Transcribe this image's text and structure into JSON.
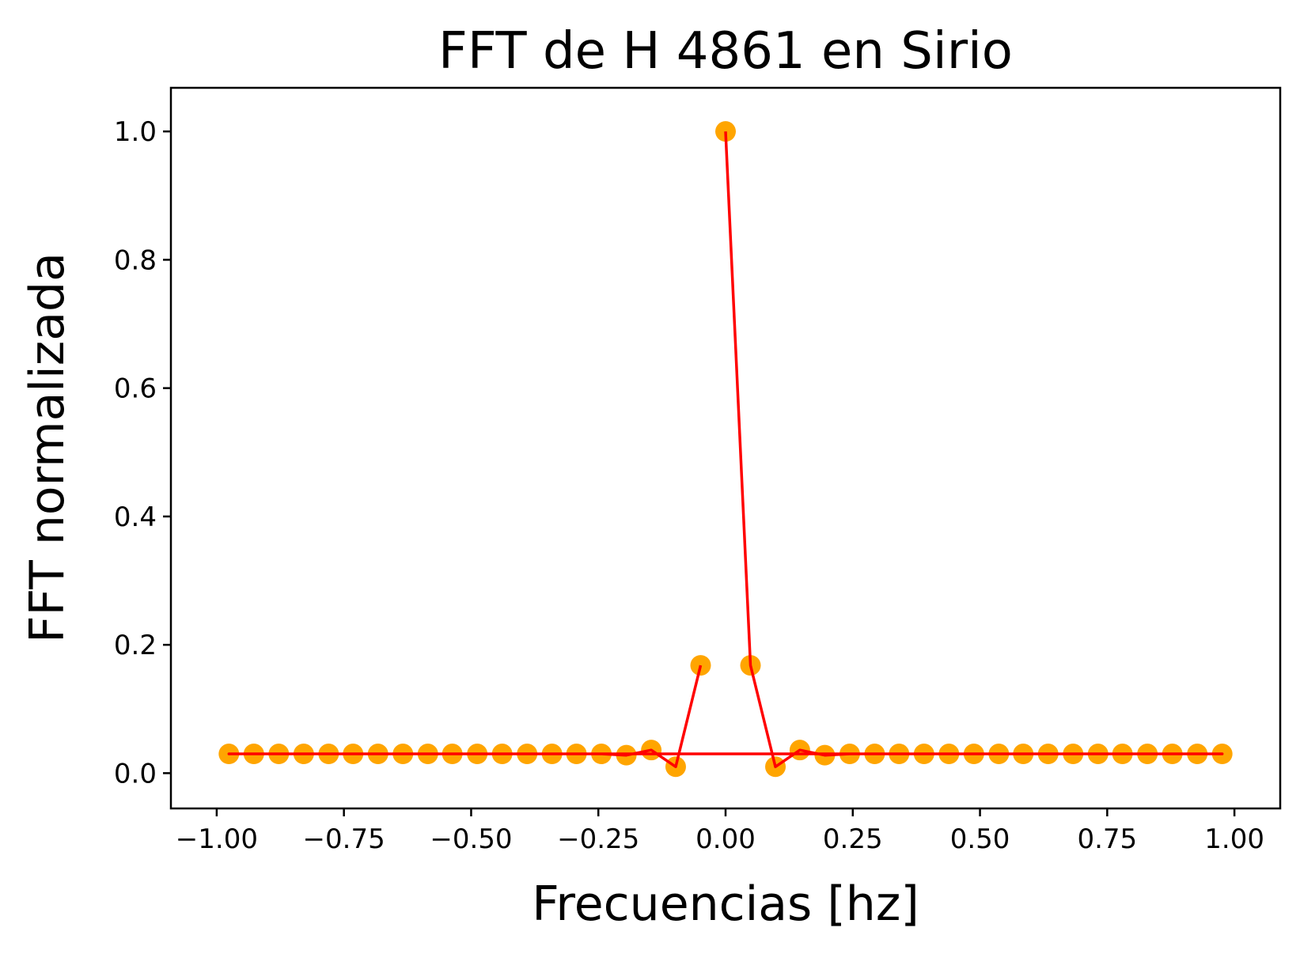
{
  "chart_data": {
    "type": "scatter",
    "title": "FFT de H 4861 en Sirio",
    "xlabel": "Frecuencias [hz]",
    "ylabel": "FFT normalizada",
    "xlim": [
      -1.09,
      1.09
    ],
    "ylim": [
      -0.055,
      1.068
    ],
    "xticks": [
      -1.0,
      -0.75,
      -0.5,
      -0.25,
      0.0,
      0.25,
      0.5,
      0.75,
      1.0
    ],
    "xtick_labels": [
      "−1.00",
      "−0.75",
      "−0.50",
      "−0.25",
      "0.00",
      "0.25",
      "0.50",
      "0.75",
      "1.00"
    ],
    "yticks": [
      0.0,
      0.2,
      0.4,
      0.6,
      0.8,
      1.0
    ],
    "ytick_labels": [
      "0.0",
      "0.2",
      "0.4",
      "0.6",
      "0.8",
      "1.0"
    ],
    "grid": false,
    "series": [
      {
        "kind": "points",
        "color": "#FFA500",
        "points": [
          [
            -0.976,
            0.03
          ],
          [
            -0.927,
            0.03
          ],
          [
            -0.878,
            0.03
          ],
          [
            -0.829,
            0.03
          ],
          [
            -0.78,
            0.03
          ],
          [
            -0.732,
            0.03
          ],
          [
            -0.683,
            0.03
          ],
          [
            -0.634,
            0.03
          ],
          [
            -0.585,
            0.03
          ],
          [
            -0.537,
            0.03
          ],
          [
            -0.488,
            0.03
          ],
          [
            -0.439,
            0.03
          ],
          [
            -0.39,
            0.03
          ],
          [
            -0.341,
            0.03
          ],
          [
            -0.293,
            0.03
          ],
          [
            -0.244,
            0.03
          ],
          [
            -0.195,
            0.028
          ],
          [
            -0.146,
            0.036
          ],
          [
            -0.098,
            0.01
          ],
          [
            -0.049,
            0.168
          ],
          [
            0.0,
            1.0
          ],
          [
            0.049,
            0.168
          ],
          [
            0.098,
            0.01
          ],
          [
            0.146,
            0.036
          ],
          [
            0.195,
            0.028
          ],
          [
            0.244,
            0.03
          ],
          [
            0.293,
            0.03
          ],
          [
            0.341,
            0.03
          ],
          [
            0.39,
            0.03
          ],
          [
            0.439,
            0.03
          ],
          [
            0.488,
            0.03
          ],
          [
            0.537,
            0.03
          ],
          [
            0.585,
            0.03
          ],
          [
            0.634,
            0.03
          ],
          [
            0.683,
            0.03
          ],
          [
            0.732,
            0.03
          ],
          [
            0.78,
            0.03
          ],
          [
            0.829,
            0.03
          ],
          [
            0.878,
            0.03
          ],
          [
            0.927,
            0.03
          ],
          [
            0.976,
            0.03
          ]
        ]
      },
      {
        "kind": "line",
        "color": "#FF0000",
        "points": [
          [
            0.0,
            1.0
          ],
          [
            0.049,
            0.168
          ],
          [
            0.098,
            0.01
          ],
          [
            0.146,
            0.036
          ],
          [
            0.195,
            0.028
          ],
          [
            0.244,
            0.03
          ],
          [
            0.293,
            0.03
          ],
          [
            0.341,
            0.03
          ],
          [
            0.39,
            0.03
          ],
          [
            0.439,
            0.03
          ],
          [
            0.488,
            0.03
          ],
          [
            0.537,
            0.03
          ],
          [
            0.585,
            0.03
          ],
          [
            0.634,
            0.03
          ],
          [
            0.683,
            0.03
          ],
          [
            0.732,
            0.03
          ],
          [
            0.78,
            0.03
          ],
          [
            0.829,
            0.03
          ],
          [
            0.878,
            0.03
          ],
          [
            0.927,
            0.03
          ],
          [
            0.976,
            0.03
          ],
          [
            -0.976,
            0.03
          ],
          [
            -0.927,
            0.03
          ],
          [
            -0.878,
            0.03
          ],
          [
            -0.829,
            0.03
          ],
          [
            -0.78,
            0.03
          ],
          [
            -0.732,
            0.03
          ],
          [
            -0.683,
            0.03
          ],
          [
            -0.634,
            0.03
          ],
          [
            -0.585,
            0.03
          ],
          [
            -0.537,
            0.03
          ],
          [
            -0.488,
            0.03
          ],
          [
            -0.439,
            0.03
          ],
          [
            -0.39,
            0.03
          ],
          [
            -0.341,
            0.03
          ],
          [
            -0.293,
            0.03
          ],
          [
            -0.244,
            0.03
          ],
          [
            -0.195,
            0.028
          ],
          [
            -0.146,
            0.036
          ],
          [
            -0.098,
            0.01
          ],
          [
            -0.049,
            0.168
          ]
        ]
      }
    ]
  }
}
